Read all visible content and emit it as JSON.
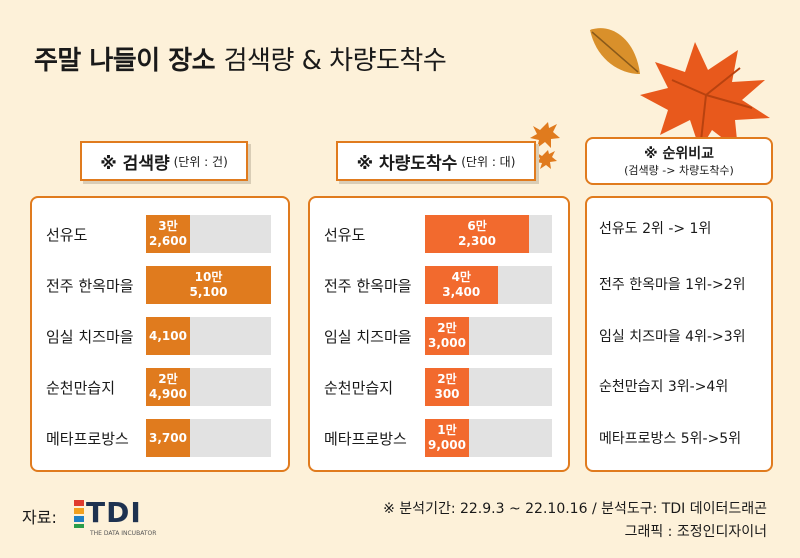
{
  "title": {
    "bold": "주말 나들이 장소",
    "light": "검색량 & 차량도착수"
  },
  "search_panel": {
    "label": "※ 검색량",
    "unit": "(단위 : 건)"
  },
  "vehicle_panel": {
    "label": "※ 차량도착수",
    "unit": "(단위 : 대)"
  },
  "rank_panel": {
    "label": "※ 순위비교",
    "sublabel": "(검색량 -> 차량도착수)",
    "items": [
      "선유도 2위 -> 1위",
      "전주 한옥마을 1위->2위",
      "임실 치즈마을 4위->3위",
      "순천만습지 3위->4위",
      "메타프로방스 5위->5위"
    ]
  },
  "footer": {
    "source_label": "자료:",
    "logo_text": "TDI",
    "logo_sub": "THE DATA INCUBATOR",
    "period": "※ 분석기간:  22.9.3 ~ 22.10.16  / 분석도구: TDI 데이터드래곤",
    "graphic": "그래픽 : 조정인디자이너"
  },
  "colors": {
    "background": "#fdf1d9",
    "accent": "#e07b1e",
    "search_bar": "#e07b1e",
    "vehicle_bar": "#f26a2e",
    "track": "#e2e2e2"
  },
  "chart_data": [
    {
      "type": "bar",
      "orientation": "horizontal",
      "categories": [
        "선유도",
        "전주 한옥마을",
        "임실 치즈마을",
        "순천만습지",
        "메타프로방스"
      ],
      "values": [
        32600,
        105100,
        4100,
        24900,
        3700
      ],
      "data_labels": [
        [
          "3만",
          "2,600"
        ],
        [
          "10만",
          "5,100"
        ],
        [
          "4,100"
        ],
        [
          "2만",
          "4,900"
        ],
        [
          "3,700"
        ]
      ],
      "xlim": [
        0,
        105100
      ]
    },
    {
      "type": "bar",
      "orientation": "horizontal",
      "categories": [
        "선유도",
        "전주 한옥마을",
        "임실 치즈마을",
        "순천만습지",
        "메타프로방스"
      ],
      "values": [
        62300,
        43400,
        23000,
        20300,
        19000
      ],
      "data_labels": [
        [
          "6만",
          "2,300"
        ],
        [
          "4만",
          "3,400"
        ],
        [
          "2만",
          "3,000"
        ],
        [
          "2만",
          "300"
        ],
        [
          "1만",
          "9,000"
        ]
      ],
      "xlim": [
        0,
        76000
      ]
    }
  ]
}
